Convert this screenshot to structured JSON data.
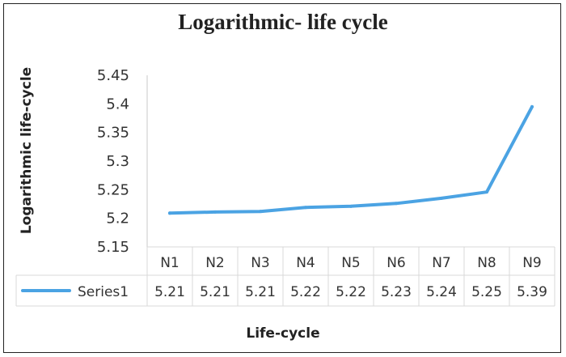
{
  "chart_data": {
    "type": "line",
    "title": "Logarithmic- life cycle",
    "xlabel": "Life-cycle",
    "ylabel": "Logarithmic life-cycle",
    "categories": [
      "N1",
      "N2",
      "N3",
      "N4",
      "N5",
      "N6",
      "N7",
      "N8",
      "N9"
    ],
    "series": [
      {
        "name": "Series1",
        "values": [
          5.209,
          5.211,
          5.212,
          5.219,
          5.221,
          5.226,
          5.235,
          5.246,
          5.395
        ],
        "labels": [
          "5.21",
          "5.21",
          "5.21",
          "5.22",
          "5.22",
          "5.23",
          "5.24",
          "5.25",
          "5.39"
        ],
        "color": "#4BA3E3"
      }
    ],
    "ylim": [
      5.15,
      5.45
    ],
    "yticks": [
      "5.45",
      "5.4",
      "5.35",
      "5.3",
      "5.25",
      "5.2",
      "5.15"
    ],
    "grid": false,
    "legend": "data-table",
    "data_table": true
  }
}
